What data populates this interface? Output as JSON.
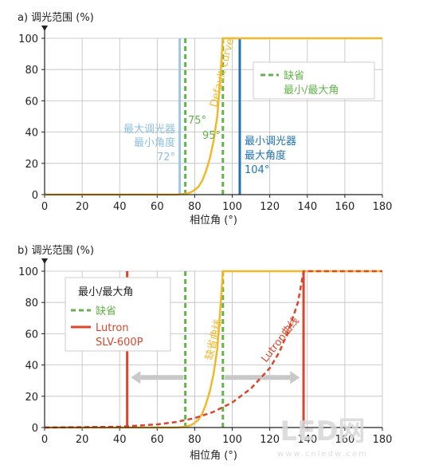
{
  "colors": {
    "yellow": "#F2B82C",
    "green": "#63B24A",
    "lightblue": "#9DC8E6",
    "blue": "#1E73B7",
    "red": "#D9462B",
    "gray_arrow": "#C8C8C8",
    "axis": "#222222",
    "watermark": "#D8D8D8"
  },
  "watermark": {
    "logo": "LED网",
    "url": "www.cnledw.com"
  },
  "chart_data": [
    {
      "panel": "a",
      "type": "line",
      "title": "a) 调光范围 (%)",
      "xlabel": "相位角 (°)",
      "ylabel": "调光范围 (%)",
      "xlim": [
        0,
        180
      ],
      "ylim": [
        0,
        100
      ],
      "x_ticks": [
        "0",
        "20",
        "40",
        "60",
        "80",
        "100",
        "120",
        "140",
        "160",
        "180"
      ],
      "y_ticks": [
        "0",
        "20",
        "40",
        "60",
        "80",
        "100"
      ],
      "grid": true,
      "series": [
        {
          "name": "Default curve",
          "style": "solid",
          "color": "yellow",
          "points": [
            [
              0,
              0
            ],
            [
              70,
              0
            ],
            [
              75,
              0.5
            ],
            [
              78,
              1.5
            ],
            [
              80,
              3
            ],
            [
              82,
              5
            ],
            [
              84,
              9
            ],
            [
              86,
              15
            ],
            [
              88,
              23
            ],
            [
              90,
              34
            ],
            [
              92,
              50
            ],
            [
              93,
              65
            ],
            [
              94,
              82
            ],
            [
              95,
              100
            ],
            [
              180,
              100
            ]
          ]
        }
      ],
      "vertical_lines": [
        {
          "name": "最大调光器最小角度",
          "x": 72,
          "style": "solid",
          "color": "lightblue"
        },
        {
          "name": "缺省 最小角度",
          "x": 75,
          "style": "dashed",
          "color": "green"
        },
        {
          "name": "缺省 最大角度",
          "x": 95,
          "style": "dashed",
          "color": "green"
        },
        {
          "name": "最小调光器最大角度",
          "x": 104,
          "style": "solid",
          "color": "blue"
        }
      ],
      "annotations": {
        "default_curve": "Default curve",
        "deg75": "75°",
        "deg95": "95°",
        "max_dimmer_line1": "最大调光器",
        "max_dimmer_line2": "最小角度",
        "max_dimmer_deg": "72°",
        "min_dimmer_line1": "最小调光器",
        "min_dimmer_line2": "最大角度",
        "min_dimmer_deg": "104°"
      },
      "legend": {
        "placement": "top-right",
        "line1": "缺省",
        "line2": "最小/最大角"
      }
    },
    {
      "panel": "b",
      "type": "line",
      "title": "b) 调光范围 (%)",
      "xlabel": "相位角 (°)",
      "ylabel": "调光范围 (%)",
      "xlim": [
        0,
        180
      ],
      "ylim": [
        0,
        100
      ],
      "x_ticks": [
        "0",
        "20",
        "40",
        "60",
        "80",
        "100",
        "120",
        "140",
        "160",
        "180"
      ],
      "y_ticks": [
        "0",
        "20",
        "40",
        "60",
        "80",
        "100"
      ],
      "grid": true,
      "series": [
        {
          "name": "缺省曲线",
          "style": "solid",
          "color": "yellow",
          "points": [
            [
              0,
              0
            ],
            [
              70,
              0
            ],
            [
              75,
              0.5
            ],
            [
              78,
              1.5
            ],
            [
              80,
              3
            ],
            [
              82,
              5
            ],
            [
              84,
              9
            ],
            [
              86,
              15
            ],
            [
              88,
              23
            ],
            [
              90,
              34
            ],
            [
              92,
              50
            ],
            [
              93,
              65
            ],
            [
              94,
              82
            ],
            [
              95,
              100
            ],
            [
              180,
              100
            ]
          ]
        },
        {
          "name": "Lutron曲线",
          "style": "dashed",
          "color": "red",
          "points": [
            [
              0,
              0
            ],
            [
              40,
              0.5
            ],
            [
              60,
              2
            ],
            [
              70,
              3.5
            ],
            [
              80,
              6
            ],
            [
              90,
              10
            ],
            [
              100,
              16
            ],
            [
              110,
              25
            ],
            [
              120,
              38
            ],
            [
              125,
              48
            ],
            [
              130,
              62
            ],
            [
              135,
              80
            ],
            [
              138,
              100
            ],
            [
              180,
              100
            ]
          ]
        }
      ],
      "vertical_lines": [
        {
          "name": "Lutron 最小角",
          "x": 44,
          "style": "solid",
          "color": "red"
        },
        {
          "name": "缺省 最小角",
          "x": 75,
          "style": "dashed",
          "color": "green"
        },
        {
          "name": "缺省 最大角",
          "x": 95,
          "style": "dashed",
          "color": "green"
        },
        {
          "name": "Lutron 最大角",
          "x": 138,
          "style": "solid",
          "color": "red"
        }
      ],
      "arrows": [
        {
          "from": 74,
          "to": 46,
          "y": 32
        },
        {
          "from": 96,
          "to": 136,
          "y": 32
        }
      ],
      "annotations": {
        "default_curve": "缺省曲线",
        "lutron_curve": "Lutron曲线"
      },
      "legend": {
        "placement": "top-left",
        "title": "最小/最大角",
        "item1": "缺省",
        "item2_line1": "Lutron",
        "item2_line2": "SLV-600P"
      }
    }
  ]
}
